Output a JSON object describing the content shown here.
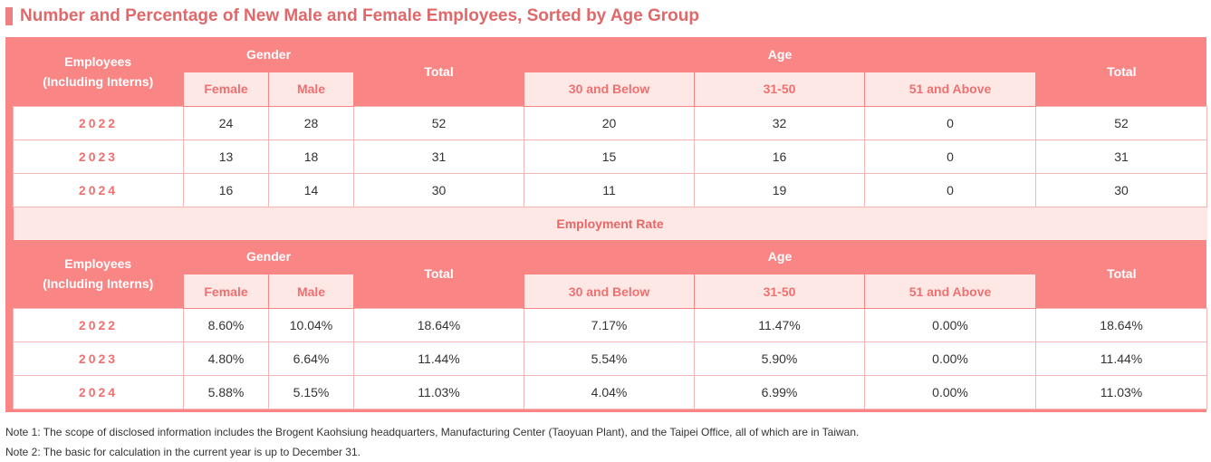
{
  "title": "Number and Percentage of New Male and Female Employees, Sorted by Age Group",
  "header": {
    "employees_line1": "Employees",
    "employees_line2": "(Including Interns)",
    "gender": "Gender",
    "female": "Female",
    "male": "Male",
    "total": "Total",
    "age": "Age",
    "age_30_below": "30 and Below",
    "age_31_50": "31-50",
    "age_51_above": "51 and Above",
    "total2": "Total"
  },
  "counts": [
    {
      "year": "2022",
      "female": "24",
      "male": "28",
      "total": "52",
      "age_30_below": "20",
      "age_31_50": "32",
      "age_51_above": "0",
      "total2": "52"
    },
    {
      "year": "2023",
      "female": "13",
      "male": "18",
      "total": "31",
      "age_30_below": "15",
      "age_31_50": "16",
      "age_51_above": "0",
      "total2": "31"
    },
    {
      "year": "2024",
      "female": "16",
      "male": "14",
      "total": "30",
      "age_30_below": "11",
      "age_31_50": "19",
      "age_51_above": "0",
      "total2": "30"
    }
  ],
  "employment_rate_label": "Employment Rate",
  "rates": [
    {
      "year": "2022",
      "female": "8.60%",
      "male": "10.04%",
      "total": "18.64%",
      "age_30_below": "7.17%",
      "age_31_50": "11.47%",
      "age_51_above": "0.00%",
      "total2": "18.64%"
    },
    {
      "year": "2023",
      "female": "4.80%",
      "male": "6.64%",
      "total": "11.44%",
      "age_30_below": "5.54%",
      "age_31_50": "5.90%",
      "age_51_above": "0.00%",
      "total2": "11.44%"
    },
    {
      "year": "2024",
      "female": "5.88%",
      "male": "5.15%",
      "total": "11.03%",
      "age_30_below": "4.04%",
      "age_31_50": "6.99%",
      "age_51_above": "0.00%",
      "total2": "11.03%"
    }
  ],
  "notes": [
    "Note 1: The scope of disclosed information includes the Brogent Kaohsiung headquarters, Manufacturing Center (Taoyuan Plant), and the Taipei Office, all of which are in Taiwan.",
    "Note 2: The basic for calculation in the current year is up to December 31."
  ],
  "colors": {
    "header_bg": "#f98585",
    "subheader_bg": "#fde8e6",
    "accent_text": "#f07070",
    "title_text": "#e0686a"
  }
}
